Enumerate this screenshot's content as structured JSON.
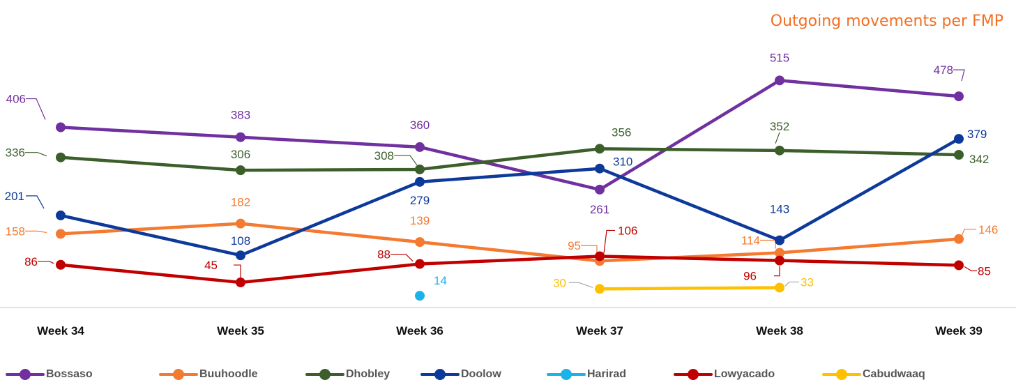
{
  "chart_data": {
    "type": "line",
    "title": "Outgoing movements per FMP",
    "categories": [
      "Week 34",
      "Week 35",
      "Week 36",
      "Week 37",
      "Week 38",
      "Week 39"
    ],
    "series": [
      {
        "name": "Bossaso",
        "color": "#7030A0",
        "values": [
          406,
          383,
          360,
          261,
          515,
          478
        ]
      },
      {
        "name": "Buuhoodle",
        "color": "#F47A30",
        "values": [
          158,
          182,
          139,
          95,
          114,
          146
        ]
      },
      {
        "name": "Dhobley",
        "color": "#3B5E2B",
        "values": [
          336,
          306,
          308,
          356,
          352,
          342
        ]
      },
      {
        "name": "Doolow",
        "color": "#0D3A9A",
        "values": [
          201,
          108,
          279,
          310,
          143,
          379
        ]
      },
      {
        "name": "Harirad",
        "color": "#1AB2E8",
        "values": [
          null,
          null,
          14,
          null,
          null,
          null
        ]
      },
      {
        "name": "Lowyacado",
        "color": "#C00000",
        "values": [
          86,
          45,
          88,
          106,
          96,
          85
        ]
      },
      {
        "name": "Cabudwaaq",
        "color": "#FFC000",
        "values": [
          null,
          null,
          null,
          30,
          33,
          null
        ]
      }
    ],
    "legend_position": "bottom",
    "grid": false
  }
}
